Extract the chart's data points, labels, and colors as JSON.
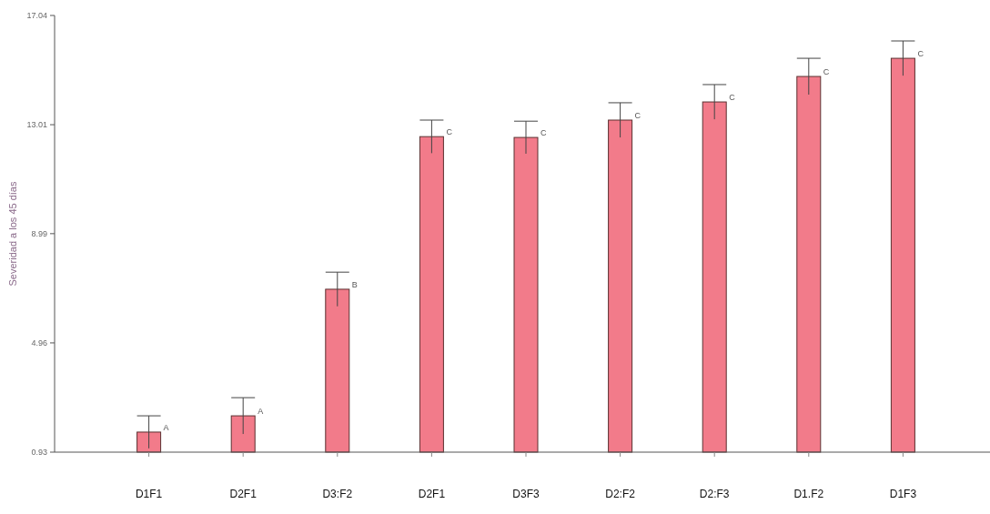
{
  "chart_data": {
    "type": "bar",
    "ylabel": "Severidad a los 45 días",
    "categories": [
      "D1F1",
      "D2F1",
      "D3:F2",
      "D2F1",
      "D3F3",
      "D2:F2",
      "D2:F3",
      "D1.F2",
      "D1F3"
    ],
    "values": [
      1.67,
      2.27,
      6.94,
      12.57,
      12.54,
      13.18,
      13.85,
      14.79,
      15.46
    ],
    "errors": [
      0.6,
      0.67,
      0.63,
      0.61,
      0.6,
      0.64,
      0.64,
      0.67,
      0.64
    ],
    "value_labels": [
      "A",
      "A",
      "B",
      "C",
      "C",
      "C",
      "C",
      "C",
      "C"
    ],
    "color": "#f27b8a",
    "ylim": [
      0.93,
      17.04
    ],
    "yticks": [
      0.93,
      4.96,
      8.99,
      13.01,
      17.04
    ]
  }
}
